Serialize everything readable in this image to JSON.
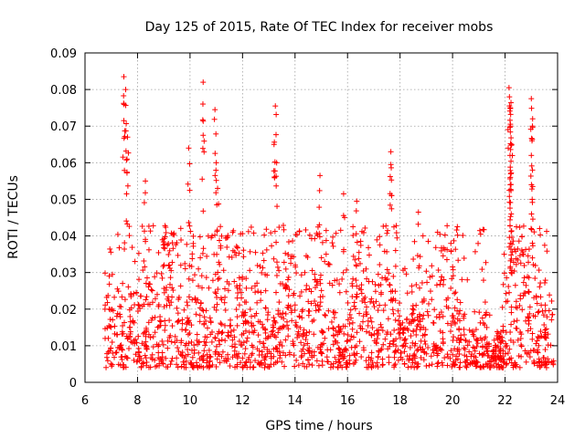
{
  "chart_data": {
    "type": "scatter",
    "title": "Day 125 of 2015, Rate Of TEC Index for receiver mobs",
    "xlabel": "GPS time / hours",
    "ylabel": "ROTI / TECUs",
    "xlim": [
      6,
      24
    ],
    "ylim": [
      0,
      0.09
    ],
    "xticks": [
      6,
      8,
      10,
      12,
      14,
      16,
      18,
      20,
      22,
      24
    ],
    "xtick_labels": [
      "6",
      "8",
      "10",
      "12",
      "14",
      "16",
      "18",
      "20",
      "22",
      "24"
    ],
    "yticks": [
      0,
      0.01,
      0.02,
      0.03,
      0.04,
      0.05,
      0.06,
      0.07,
      0.08,
      0.09
    ],
    "ytick_labels": [
      "0",
      "0.01",
      "0.02",
      "0.03",
      "0.04",
      "0.05",
      "0.06",
      "0.07",
      "0.08",
      "0.09"
    ],
    "grid": true,
    "marker": "+",
    "marker_color": "#ff0000",
    "series": [
      {
        "name": "ROTI",
        "x_range": [
          6.75,
          23.85
        ],
        "typical_range": [
          0.004,
          0.035
        ],
        "note": "dense points between 6.75h and 23.85h, bulk between ~0.005 and ~0.035 TECU",
        "peaks": [
          {
            "x": 7.48,
            "y": 0.0835
          },
          {
            "x": 7.55,
            "y": 0.08
          },
          {
            "x": 7.48,
            "y": 0.0715
          },
          {
            "x": 7.62,
            "y": 0.067
          },
          {
            "x": 7.6,
            "y": 0.061
          },
          {
            "x": 8.3,
            "y": 0.055
          },
          {
            "x": 9.95,
            "y": 0.064
          },
          {
            "x": 10.5,
            "y": 0.082
          },
          {
            "x": 10.5,
            "y": 0.0675
          },
          {
            "x": 10.95,
            "y": 0.0745
          },
          {
            "x": 11.0,
            "y": 0.06
          },
          {
            "x": 11.05,
            "y": 0.053
          },
          {
            "x": 13.25,
            "y": 0.0755
          },
          {
            "x": 13.2,
            "y": 0.065
          },
          {
            "x": 13.3,
            "y": 0.06
          },
          {
            "x": 14.95,
            "y": 0.0565
          },
          {
            "x": 15.85,
            "y": 0.0515
          },
          {
            "x": 16.35,
            "y": 0.0495
          },
          {
            "x": 17.65,
            "y": 0.063
          },
          {
            "x": 17.65,
            "y": 0.0595
          },
          {
            "x": 18.7,
            "y": 0.0465
          },
          {
            "x": 22.15,
            "y": 0.0805
          },
          {
            "x": 22.2,
            "y": 0.075
          },
          {
            "x": 22.25,
            "y": 0.065
          },
          {
            "x": 22.2,
            "y": 0.056
          },
          {
            "x": 23.0,
            "y": 0.0775
          },
          {
            "x": 23.05,
            "y": 0.072
          },
          {
            "x": 23.05,
            "y": 0.0535
          }
        ]
      }
    ]
  }
}
